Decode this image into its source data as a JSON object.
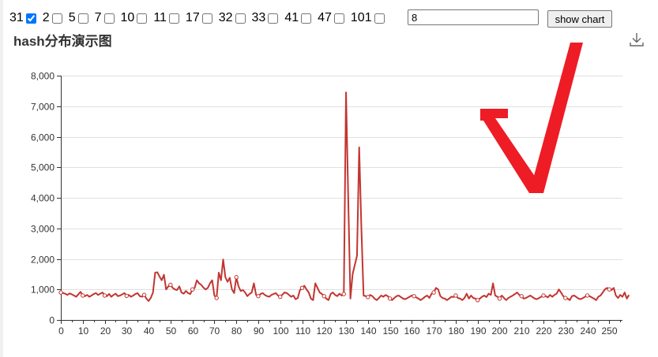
{
  "controls": {
    "options": [
      {
        "label": "31",
        "checked": true
      },
      {
        "label": "2",
        "checked": false
      },
      {
        "label": "5",
        "checked": false
      },
      {
        "label": "7",
        "checked": false
      },
      {
        "label": "10",
        "checked": false
      },
      {
        "label": "11",
        "checked": false
      },
      {
        "label": "17",
        "checked": false
      },
      {
        "label": "32",
        "checked": false
      },
      {
        "label": "33",
        "checked": false
      },
      {
        "label": "41",
        "checked": false
      },
      {
        "label": "47",
        "checked": false
      },
      {
        "label": "101",
        "checked": false
      }
    ],
    "bucket_value": "8",
    "show_button_label": "show chart"
  },
  "toolbar": {
    "download_icon": "download-icon"
  },
  "overlay": {
    "checkmark_color": "#ee1c25"
  },
  "chart_data": {
    "type": "line",
    "title": "hash分布演示图",
    "xlabel": "",
    "ylabel": "",
    "xlim": [
      0,
      256
    ],
    "ylim": [
      0,
      8000
    ],
    "x_ticks": [
      0,
      10,
      20,
      30,
      40,
      50,
      60,
      70,
      80,
      90,
      100,
      110,
      120,
      130,
      140,
      150,
      160,
      170,
      180,
      190,
      200,
      210,
      220,
      230,
      240,
      250
    ],
    "y_ticks": [
      0,
      1000,
      2000,
      3000,
      4000,
      5000,
      6000,
      7000,
      8000
    ],
    "y_tick_labels": [
      "0",
      "1,000",
      "2,000",
      "3,000",
      "4,000",
      "5,000",
      "6,000",
      "7,000",
      "8,000"
    ],
    "grid": true,
    "line_color": "#c23531",
    "series": [
      {
        "values": [
          900,
          880,
          860,
          820,
          870,
          840,
          800,
          760,
          840,
          920,
          800,
          780,
          820,
          760,
          800,
          850,
          880,
          820,
          860,
          900,
          800,
          780,
          850,
          760,
          820,
          860,
          780,
          800,
          840,
          880,
          790,
          820,
          760,
          800,
          850,
          880,
          780,
          760,
          820,
          700,
          620,
          720,
          900,
          1550,
          1560,
          1420,
          1300,
          1480,
          1000,
          1100,
          1150,
          1050,
          1000,
          980,
          1100,
          900,
          860,
          950,
          880,
          850,
          1000,
          1050,
          1300,
          1200,
          1150,
          1060,
          1000,
          1050,
          1200,
          1300,
          800,
          720,
          1550,
          1300,
          1980,
          1400,
          1250,
          1380,
          1000,
          880,
          1400,
          1100,
          950,
          980,
          900,
          780,
          850,
          900,
          1200,
          820,
          780,
          850,
          880,
          820,
          780,
          760,
          820,
          850,
          880,
          800,
          760,
          830,
          900,
          880,
          820,
          760,
          800,
          680,
          720,
          980,
          1050,
          1120,
          1000,
          900,
          700,
          650,
          1200,
          1050,
          900,
          850,
          780,
          700,
          650,
          850,
          900,
          820,
          780,
          860,
          800,
          850,
          7450,
          4000,
          700,
          1500,
          1800,
          2100,
          5650,
          3000,
          800,
          780,
          750,
          820,
          780,
          700,
          650,
          720,
          800,
          760,
          820,
          780,
          700,
          650,
          720,
          780,
          800,
          750,
          700,
          680,
          720,
          760,
          800,
          780,
          740,
          700,
          650,
          700,
          760,
          800,
          720,
          860,
          900,
          1050,
          1000,
          780,
          720,
          700,
          650,
          700,
          760,
          750,
          800,
          720,
          700,
          650,
          720,
          860,
          700,
          800,
          720,
          700,
          650,
          700,
          760,
          800,
          750,
          860,
          820,
          1200,
          800,
          760,
          700,
          800,
          720,
          650,
          720,
          760,
          800,
          850,
          900,
          820,
          780,
          700,
          720,
          760,
          800,
          750,
          700,
          680,
          720,
          760,
          800,
          780,
          740,
          820,
          760,
          820,
          860,
          1000,
          900,
          780,
          720,
          700,
          650,
          780,
          800,
          750,
          700,
          680,
          720,
          760,
          800,
          780,
          740,
          700,
          650,
          760,
          800,
          900,
          1000,
          1050,
          1000,
          980,
          1050,
          800,
          720,
          820,
          760,
          900,
          700,
          820
        ]
      }
    ],
    "marker_indices": [
      0,
      10,
      20,
      30,
      38,
      50,
      60,
      71,
      80,
      90,
      100,
      110,
      120,
      129,
      140,
      150,
      161,
      170,
      180,
      190,
      200,
      210,
      220,
      230,
      240,
      250
    ]
  }
}
